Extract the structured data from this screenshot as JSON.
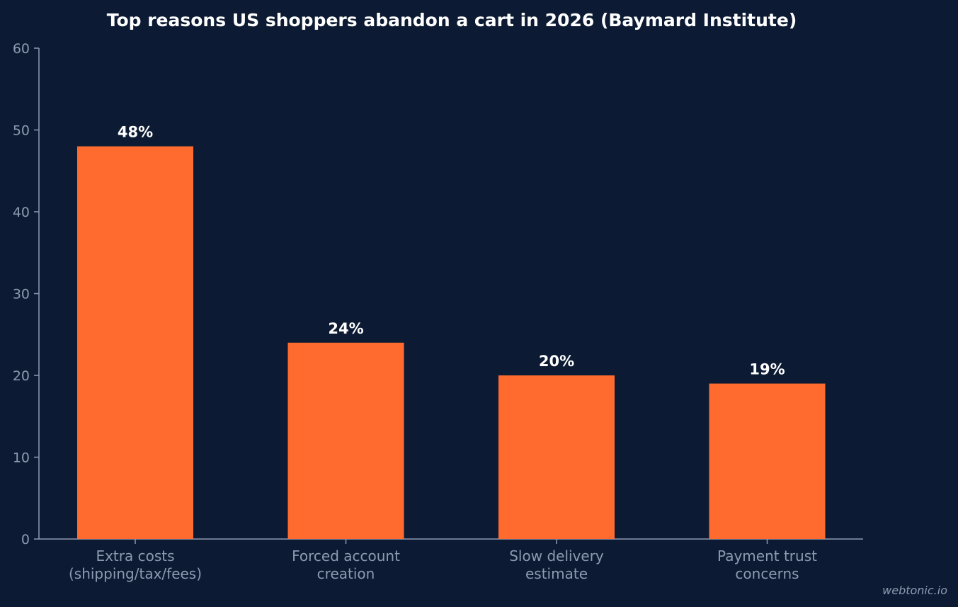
{
  "chart_data": {
    "type": "bar",
    "title": "Top reasons US shoppers abandon a cart in 2026 (Baymard Institute)",
    "categories": [
      [
        "Extra costs",
        "(shipping/tax/fees)"
      ],
      [
        "Forced account",
        "creation"
      ],
      [
        "Slow delivery",
        "estimate"
      ],
      [
        "Payment trust",
        "concerns"
      ]
    ],
    "values": [
      48,
      24,
      20,
      19
    ],
    "value_labels": [
      "48%",
      "24%",
      "20%",
      "19%"
    ],
    "xlabel": "",
    "ylabel": "",
    "ylim": [
      0,
      60
    ],
    "yticks": [
      "0",
      "10",
      "20",
      "30",
      "40",
      "50",
      "60"
    ],
    "grid": false,
    "legend": "none",
    "colors": {
      "background": "#0c1b33",
      "bar": "#ff6b2f",
      "axis": "#8e9ab1",
      "text": "#ffffff"
    }
  },
  "watermark": "webtonic.io"
}
